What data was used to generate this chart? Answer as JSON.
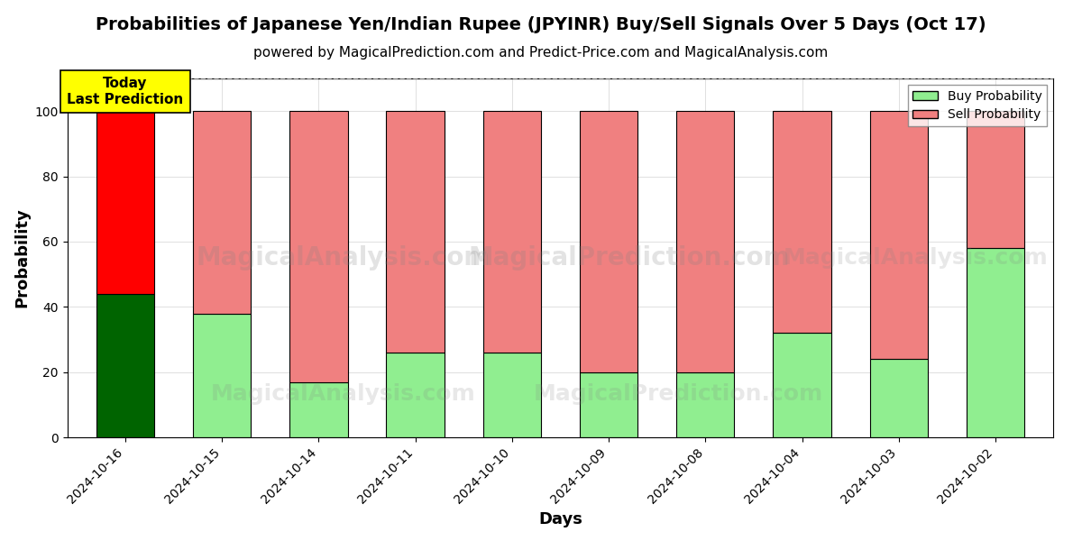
{
  "title": "Probabilities of Japanese Yen/Indian Rupee (JPYINR) Buy/Sell Signals Over 5 Days (Oct 17)",
  "subtitle": "powered by MagicalPrediction.com and Predict-Price.com and MagicalAnalysis.com",
  "xlabel": "Days",
  "ylabel": "Probability",
  "dates": [
    "2024-10-16",
    "2024-10-15",
    "2024-10-14",
    "2024-10-11",
    "2024-10-10",
    "2024-10-09",
    "2024-10-08",
    "2024-10-04",
    "2024-10-03",
    "2024-10-02"
  ],
  "buy_values": [
    44,
    38,
    17,
    26,
    26,
    20,
    20,
    32,
    24,
    58
  ],
  "sell_values": [
    56,
    62,
    83,
    74,
    74,
    80,
    80,
    68,
    76,
    42
  ],
  "buy_color_today": "#006400",
  "sell_color_today": "#ff0000",
  "buy_color": "#90EE90",
  "sell_color": "#f08080",
  "bar_edge_color": "#000000",
  "ylim": [
    0,
    110
  ],
  "dashed_line_y": 110,
  "annotation_text": "Today\nLast Prediction",
  "annotation_bg": "#ffff00",
  "legend_buy_label": "Buy Probability",
  "legend_sell_label": "Sell Probability",
  "title_fontsize": 14,
  "subtitle_fontsize": 11,
  "axis_label_fontsize": 13,
  "tick_fontsize": 10
}
